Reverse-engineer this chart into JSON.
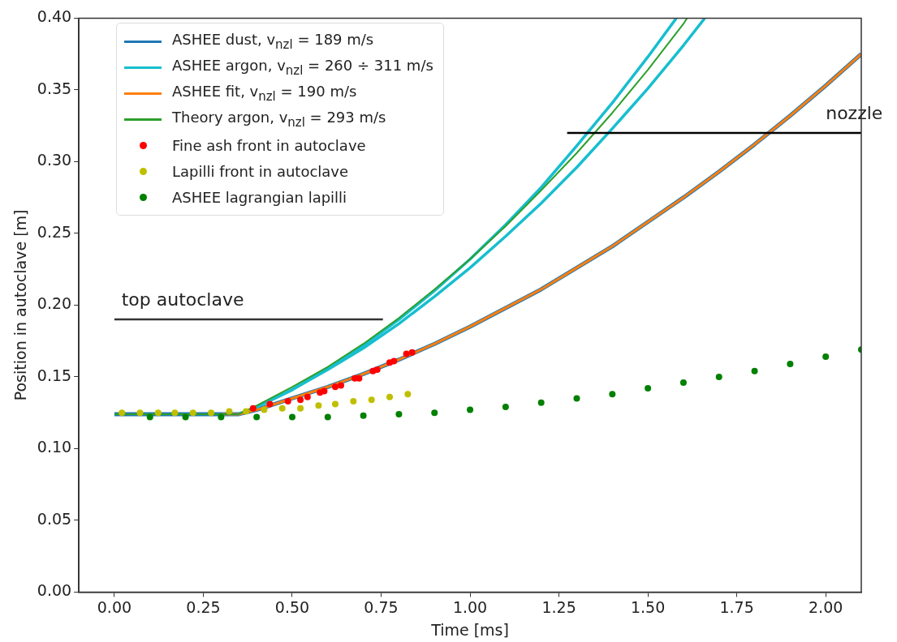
{
  "chart_data": {
    "type": "line",
    "xlabel": "Time [ms]",
    "ylabel": "Position in autoclave [m]",
    "xlim": [
      -0.1,
      2.1
    ],
    "xticks": [
      {
        "value": 0,
        "label": "0.00"
      },
      {
        "value": 0.25,
        "label": "0.25"
      },
      {
        "value": 0.5,
        "label": "0.50"
      },
      {
        "value": 0.75,
        "label": "0.75"
      },
      {
        "value": 1,
        "label": "1.00"
      },
      {
        "value": 1.25,
        "label": "1.25"
      },
      {
        "value": 1.5,
        "label": "1.50"
      },
      {
        "value": 1.75,
        "label": "1.75"
      },
      {
        "value": 2,
        "label": "2.00"
      }
    ],
    "ylim": [
      0,
      0.4
    ],
    "yticks": [
      {
        "value": 0,
        "label": "0.00"
      },
      {
        "value": 0.05,
        "label": "0.05"
      },
      {
        "value": 0.1,
        "label": "0.10"
      },
      {
        "value": 0.15,
        "label": "0.15"
      },
      {
        "value": 0.2,
        "label": "0.20"
      },
      {
        "value": 0.25,
        "label": "0.25"
      },
      {
        "value": 0.3,
        "label": "0.30"
      },
      {
        "value": 0.35,
        "label": "0.35"
      },
      {
        "value": 0.4,
        "label": "0.40"
      }
    ],
    "legend": "top left",
    "series": [
      {
        "name": "ASHEE dust, v$_{nzl}$ = 189 m/s",
        "type": "line",
        "color": "#1f77b4",
        "x": [
          0,
          0.1,
          0.2,
          0.3,
          0.35,
          0.4,
          0.5,
          0.6,
          0.7,
          0.8,
          0.9,
          1.0,
          1.1,
          1.2,
          1.3,
          1.4,
          1.5,
          1.6,
          1.7,
          1.8,
          1.9,
          2.0,
          2.1
        ],
        "values": [
          0.124,
          0.124,
          0.124,
          0.124,
          0.124,
          0.127,
          0.135,
          0.143,
          0.152,
          0.162,
          0.173,
          0.185,
          0.198,
          0.211,
          0.226,
          0.241,
          0.258,
          0.275,
          0.293,
          0.312,
          0.332,
          0.353,
          0.375
        ]
      },
      {
        "name": "ASHEE argon, v$_{nzl}$ = 260 ÷ 311 m/s",
        "type": "line",
        "color": "#17becf",
        "x": [
          0.35,
          0.4,
          0.5,
          0.6,
          0.7,
          0.8,
          0.9,
          1.0,
          1.1,
          1.2,
          1.3,
          1.4,
          1.5,
          1.58
        ],
        "values": [
          0.124,
          0.129,
          0.141,
          0.156,
          0.172,
          0.19,
          0.21,
          0.232,
          0.256,
          0.282,
          0.311,
          0.341,
          0.373,
          0.4
        ]
      },
      {
        "type": "line",
        "color": "#17becf",
        "x": [
          0.35,
          0.4,
          0.5,
          0.6,
          0.7,
          0.8,
          0.9,
          1.0,
          1.1,
          1.2,
          1.3,
          1.4,
          1.5,
          1.6,
          1.66
        ],
        "values": [
          0.124,
          0.129,
          0.141,
          0.155,
          0.17,
          0.187,
          0.206,
          0.226,
          0.248,
          0.271,
          0.296,
          0.323,
          0.351,
          0.381,
          0.4
        ]
      },
      {
        "name": "ASHEE fit, v$_{nzl}$ = 190 m/s",
        "type": "line",
        "color": "#ff7f0e",
        "x": [
          0.3,
          0.35,
          0.4,
          0.5,
          0.6,
          0.7,
          0.8,
          0.9,
          1.0,
          1.1,
          1.2,
          1.3,
          1.4,
          1.5,
          1.6,
          1.7,
          1.8,
          1.9,
          2.0,
          2.1
        ],
        "values": [
          0.124,
          0.124,
          0.127,
          0.135,
          0.143,
          0.152,
          0.162,
          0.173,
          0.185,
          0.198,
          0.211,
          0.226,
          0.241,
          0.258,
          0.275,
          0.293,
          0.312,
          0.332,
          0.353,
          0.375
        ]
      },
      {
        "name": "Theory argon, v$_{nzl}$ = 293 m/s",
        "type": "line",
        "color": "#2ca02c",
        "x": [
          0,
          0.1,
          0.2,
          0.3,
          0.35,
          0.4,
          0.5,
          0.6,
          0.7,
          0.8,
          0.9,
          1.0,
          1.1,
          1.2,
          1.3,
          1.4,
          1.5,
          1.6,
          1.61
        ],
        "values": [
          0.124,
          0.124,
          0.124,
          0.124,
          0.124,
          0.13,
          0.143,
          0.157,
          0.173,
          0.191,
          0.211,
          0.232,
          0.255,
          0.28,
          0.306,
          0.334,
          0.364,
          0.396,
          0.4
        ]
      },
      {
        "type": "line",
        "color": "#333333",
        "x": [
          0,
          0.755
        ],
        "values": [
          0.19,
          0.19
        ]
      },
      {
        "type": "line",
        "color": "#000000",
        "x": [
          1.273,
          2.1
        ],
        "values": [
          0.32,
          0.32
        ]
      },
      {
        "name": "Fine ash front in autoclave",
        "type": "scatter",
        "marker": "circle",
        "color": "#ff0000",
        "x": [
          0.39,
          0.437,
          0.488,
          0.523,
          0.543,
          0.578,
          0.59,
          0.621,
          0.637,
          0.676,
          0.688,
          0.727,
          0.739,
          0.774,
          0.786,
          0.821,
          0.837
        ],
        "values": [
          0.128,
          0.131,
          0.133,
          0.134,
          0.136,
          0.139,
          0.14,
          0.143,
          0.144,
          0.149,
          0.149,
          0.154,
          0.155,
          0.16,
          0.161,
          0.166,
          0.167
        ]
      },
      {
        "name": "Lapilli front in autoclave",
        "type": "scatter",
        "marker": "circle",
        "color": "#bfbf00",
        "x": [
          0.021,
          0.072,
          0.123,
          0.17,
          0.221,
          0.272,
          0.323,
          0.37,
          0.421,
          0.472,
          0.523,
          0.574,
          0.621,
          0.672,
          0.723,
          0.774,
          0.825
        ],
        "values": [
          0.125,
          0.125,
          0.125,
          0.125,
          0.125,
          0.125,
          0.126,
          0.126,
          0.127,
          0.128,
          0.128,
          0.13,
          0.131,
          0.133,
          0.134,
          0.136,
          0.138
        ]
      },
      {
        "name": "ASHEE lagrangian lapilli",
        "type": "scatter",
        "marker": "circle",
        "color": "#008000",
        "x": [
          0.1,
          0.2,
          0.3,
          0.4,
          0.5,
          0.6,
          0.7,
          0.8,
          0.9,
          1.0,
          1.1,
          1.2,
          1.3,
          1.4,
          1.5,
          1.6,
          1.7,
          1.8,
          1.9,
          2.0,
          2.1
        ],
        "values": [
          0.122,
          0.122,
          0.122,
          0.122,
          0.122,
          0.122,
          0.123,
          0.124,
          0.125,
          0.127,
          0.129,
          0.132,
          0.135,
          0.138,
          0.142,
          0.146,
          0.15,
          0.154,
          0.159,
          0.164,
          0.169
        ]
      }
    ],
    "annotations": [
      {
        "text": "top autoclave",
        "x": 0.02,
        "y": 0.19
      },
      {
        "text": "nozzle",
        "x": 2.0,
        "y": 0.32
      }
    ]
  }
}
